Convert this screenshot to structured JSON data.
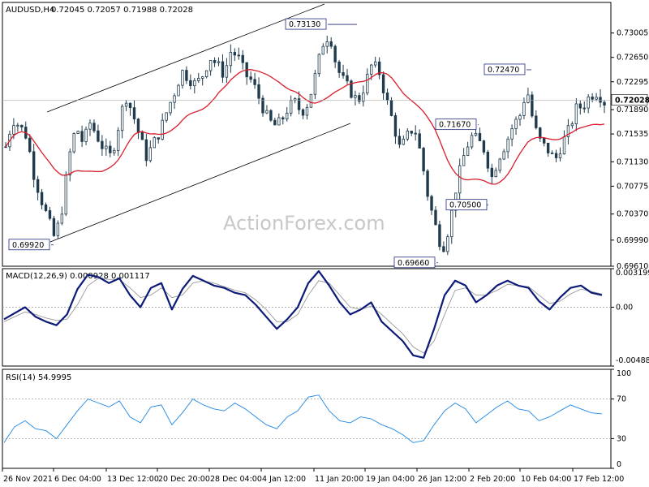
{
  "header": {
    "symbol": "AUDUSD,H4",
    "ohlc": "0.72045 0.72057 0.71988 0.72028"
  },
  "watermark": "ActionForex.com",
  "colors": {
    "candles": "#1f3b4d",
    "ma": "#d81e2c",
    "channel": "#000000",
    "macd": "#0c1a78",
    "signal": "#9a9a9a",
    "rsi": "#1e88e5",
    "grid_dash": "#a0a0a0",
    "annotation_border": "#1f2a7a"
  },
  "chart_data": [
    {
      "type": "candlestick",
      "panel": "price",
      "ylim": [
        0.6961,
        0.7345
      ],
      "y_ticks": [
        "0.73005",
        "0.72650",
        "0.72295",
        "0.71890",
        "0.71535",
        "0.71130",
        "0.70775",
        "0.70370",
        "0.69990",
        "0.69610"
      ],
      "y_tick_values": [
        0.73005,
        0.7265,
        0.72295,
        0.7189,
        0.71535,
        0.7113,
        0.70775,
        0.7037,
        0.6999,
        0.6961
      ],
      "current_price_label": "0.72028",
      "current_price": 0.72028,
      "x_tick_labels": [
        "26 Nov 2021",
        "6 Dec 04:00",
        "13 Dec 12:00",
        "20 Dec 20:00",
        "28 Dec 04:00",
        "4 Jan 12:00",
        "11 Jan 20:00",
        "19 Jan 04:00",
        "26 Jan 12:00",
        "2 Feb 20:00",
        "10 Feb 04:00",
        "17 Feb 12:00"
      ],
      "close_path": [
        0.7135,
        0.7175,
        0.7165,
        0.715,
        0.7095,
        0.706,
        0.703,
        0.7,
        0.7045,
        0.712,
        0.7165,
        0.714,
        0.717,
        0.715,
        0.713,
        0.712,
        0.7165,
        0.721,
        0.7185,
        0.715,
        0.712,
        0.714,
        0.716,
        0.719,
        0.7215,
        0.7245,
        0.7235,
        0.7225,
        0.724,
        0.7265,
        0.7255,
        0.724,
        0.7275,
        0.7265,
        0.724,
        0.723,
        0.7205,
        0.718,
        0.7165,
        0.717,
        0.719,
        0.72,
        0.7185,
        0.72,
        0.724,
        0.7285,
        0.73,
        0.725,
        0.723,
        0.7215,
        0.72,
        0.7225,
        0.7255,
        0.7245,
        0.7205,
        0.717,
        0.713,
        0.715,
        0.7165,
        0.712,
        0.706,
        0.702,
        0.6985,
        0.702,
        0.708,
        0.712,
        0.715,
        0.7145,
        0.713,
        0.709,
        0.712,
        0.714,
        0.7165,
        0.718,
        0.722,
        0.7165,
        0.714,
        0.713,
        0.7115,
        0.714,
        0.716,
        0.719,
        0.7195,
        0.721,
        0.7215,
        0.72
      ],
      "annotations": [
        {
          "label": "0.73130",
          "value": 0.7313
        },
        {
          "label": "0.72470",
          "value": 0.7247
        },
        {
          "label": "0.71670",
          "value": 0.7167
        },
        {
          "label": "0.70500",
          "value": 0.705
        },
        {
          "label": "0.69920",
          "value": 0.6992
        },
        {
          "label": "0.69660",
          "value": 0.6966
        }
      ]
    },
    {
      "type": "line",
      "panel": "macd",
      "title": "MACD(12,26,9) 0.000928 0.001117",
      "ylim": [
        -0.004887,
        0.003199
      ],
      "y_ticks": [
        "0.003199",
        "0.00",
        "-0.004887"
      ],
      "y_tick_values": [
        0.003199,
        0.0,
        -0.004887
      ],
      "series": [
        {
          "values": [
            -0.001,
            -0.0005,
            0.0,
            -0.0008,
            -0.0012,
            -0.0015,
            -0.0006,
            0.0015,
            0.0027,
            0.0025,
            0.002,
            0.0024,
            0.001,
            0.0,
            0.0016,
            0.002,
            -0.0002,
            0.0015,
            0.0026,
            0.0022,
            0.0018,
            0.0016,
            0.0012,
            0.001,
            0.0002,
            -0.0008,
            -0.0018,
            -0.001,
            0.0,
            0.002,
            0.003,
            0.0018,
            0.0004,
            -0.0006,
            -0.0002,
            0.0004,
            -0.0012,
            -0.002,
            -0.0028,
            -0.004,
            -0.0042,
            -0.0018,
            0.001,
            0.0022,
            0.0018,
            0.0004,
            0.001,
            0.0018,
            0.0022,
            0.0018,
            0.0016,
            0.0005,
            -0.0002,
            0.0008,
            0.0016,
            0.0018,
            0.0012,
            0.001
          ]
        },
        {
          "values": [
            -0.0012,
            -0.0008,
            -0.0004,
            -0.0006,
            -0.0009,
            -0.0011,
            -0.001,
            0.0002,
            0.0018,
            0.0024,
            0.0023,
            0.0023,
            0.0016,
            0.0008,
            0.001,
            0.0016,
            0.0008,
            0.001,
            0.002,
            0.0022,
            0.002,
            0.0017,
            0.0014,
            0.0012,
            0.0006,
            -0.0002,
            -0.0012,
            -0.0012,
            -0.0006,
            0.001,
            0.0022,
            0.002,
            0.001,
            0.0,
            -0.0002,
            0.0001,
            -0.0006,
            -0.0014,
            -0.0022,
            -0.0033,
            -0.0038,
            -0.0028,
            -0.0006,
            0.0014,
            0.0016,
            0.001,
            0.001,
            0.0014,
            0.0019,
            0.0018,
            0.0017,
            0.001,
            0.0003,
            0.0005,
            0.0011,
            0.0015,
            0.0013,
            0.0011
          ]
        }
      ]
    },
    {
      "type": "line",
      "panel": "rsi",
      "title": "RSI(14) 54.9995",
      "ylim": [
        0,
        100
      ],
      "y_ticks": [
        "100",
        "70",
        "30",
        "0"
      ],
      "y_tick_values": [
        100,
        70,
        30,
        0
      ],
      "series": [
        {
          "values": [
            26,
            42,
            48,
            40,
            38,
            30,
            44,
            58,
            70,
            66,
            62,
            68,
            52,
            46,
            62,
            64,
            44,
            56,
            70,
            64,
            60,
            58,
            66,
            60,
            52,
            44,
            40,
            52,
            58,
            72,
            74,
            58,
            48,
            46,
            52,
            50,
            44,
            40,
            34,
            26,
            28,
            44,
            58,
            66,
            60,
            46,
            54,
            62,
            68,
            60,
            58,
            48,
            52,
            58,
            64,
            60,
            56,
            55
          ]
        }
      ]
    }
  ]
}
